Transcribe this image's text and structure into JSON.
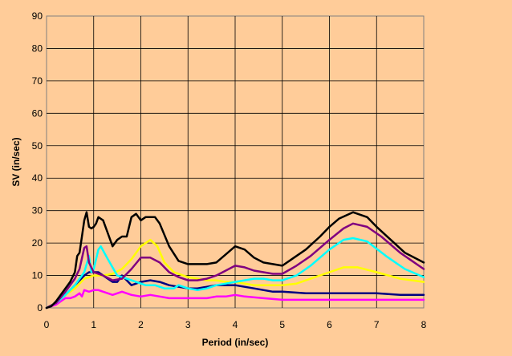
{
  "chart_data": {
    "type": "line",
    "title": "",
    "xlabel": "Period (in/sec)",
    "ylabel": "SV (in/sec)",
    "xlim": [
      0,
      8
    ],
    "ylim": [
      0,
      90
    ],
    "x_ticks": [
      "0",
      "1",
      "2",
      "3",
      "4",
      "5",
      "6",
      "7",
      "8"
    ],
    "y_ticks": [
      "0",
      "10",
      "20",
      "30",
      "40",
      "50",
      "60",
      "70",
      "80",
      "90"
    ],
    "grid": true,
    "legend": "none",
    "background": "#ffcc99",
    "plot_background": "#ffcc99",
    "series": [
      {
        "color": "#000000",
        "points": [
          [
            0,
            0
          ],
          [
            0.1,
            0.5
          ],
          [
            0.2,
            2
          ],
          [
            0.3,
            4
          ],
          [
            0.4,
            6
          ],
          [
            0.5,
            8
          ],
          [
            0.6,
            11
          ],
          [
            0.65,
            16
          ],
          [
            0.7,
            17
          ],
          [
            0.75,
            22
          ],
          [
            0.8,
            27
          ],
          [
            0.85,
            29.5
          ],
          [
            0.9,
            25
          ],
          [
            0.95,
            24.5
          ],
          [
            1.0,
            25
          ],
          [
            1.05,
            26
          ],
          [
            1.1,
            28
          ],
          [
            1.2,
            27
          ],
          [
            1.3,
            23
          ],
          [
            1.4,
            19
          ],
          [
            1.5,
            21
          ],
          [
            1.6,
            22
          ],
          [
            1.7,
            22
          ],
          [
            1.8,
            28
          ],
          [
            1.9,
            29
          ],
          [
            2.0,
            27
          ],
          [
            2.1,
            28
          ],
          [
            2.2,
            28
          ],
          [
            2.3,
            28
          ],
          [
            2.4,
            26
          ],
          [
            2.6,
            19
          ],
          [
            2.8,
            14.5
          ],
          [
            3.0,
            13.5
          ],
          [
            3.2,
            13.5
          ],
          [
            3.4,
            13.5
          ],
          [
            3.6,
            14
          ],
          [
            3.8,
            16.5
          ],
          [
            4.0,
            19
          ],
          [
            4.2,
            18
          ],
          [
            4.4,
            15.5
          ],
          [
            4.6,
            14
          ],
          [
            4.8,
            13.5
          ],
          [
            5.0,
            13
          ],
          [
            5.2,
            15
          ],
          [
            5.5,
            18
          ],
          [
            5.8,
            22
          ],
          [
            6.0,
            25
          ],
          [
            6.2,
            27.5
          ],
          [
            6.5,
            29.5
          ],
          [
            6.8,
            28
          ],
          [
            7.0,
            25
          ],
          [
            7.3,
            21
          ],
          [
            7.6,
            17
          ],
          [
            8.0,
            14
          ]
        ]
      },
      {
        "color": "#800080",
        "points": [
          [
            0,
            0
          ],
          [
            0.2,
            1.5
          ],
          [
            0.4,
            5
          ],
          [
            0.6,
            9
          ],
          [
            0.7,
            12
          ],
          [
            0.8,
            18.5
          ],
          [
            0.85,
            19
          ],
          [
            0.9,
            14
          ],
          [
            1.0,
            11
          ],
          [
            1.2,
            10
          ],
          [
            1.4,
            8.5
          ],
          [
            1.6,
            9
          ],
          [
            1.8,
            12
          ],
          [
            2.0,
            15.5
          ],
          [
            2.2,
            15.5
          ],
          [
            2.4,
            14
          ],
          [
            2.6,
            11
          ],
          [
            2.8,
            9.5
          ],
          [
            3.0,
            8.5
          ],
          [
            3.2,
            8.5
          ],
          [
            3.4,
            9
          ],
          [
            3.6,
            10
          ],
          [
            3.8,
            11.5
          ],
          [
            4.0,
            13
          ],
          [
            4.2,
            12.5
          ],
          [
            4.4,
            11.5
          ],
          [
            4.6,
            11
          ],
          [
            4.8,
            10.5
          ],
          [
            5.0,
            10.5
          ],
          [
            5.3,
            13
          ],
          [
            5.6,
            16
          ],
          [
            6.0,
            21
          ],
          [
            6.3,
            24.5
          ],
          [
            6.5,
            26
          ],
          [
            6.8,
            25
          ],
          [
            7.1,
            22
          ],
          [
            7.5,
            17
          ],
          [
            8.0,
            12
          ]
        ]
      },
      {
        "color": "#00ffff",
        "points": [
          [
            0,
            0
          ],
          [
            0.2,
            1.5
          ],
          [
            0.4,
            4
          ],
          [
            0.6,
            7
          ],
          [
            0.8,
            11
          ],
          [
            0.9,
            16
          ],
          [
            0.95,
            11
          ],
          [
            1.0,
            12
          ],
          [
            1.1,
            18
          ],
          [
            1.15,
            19
          ],
          [
            1.3,
            15
          ],
          [
            1.5,
            10
          ],
          [
            1.7,
            9
          ],
          [
            1.9,
            8
          ],
          [
            2.1,
            7
          ],
          [
            2.3,
            7
          ],
          [
            2.5,
            6
          ],
          [
            2.7,
            6
          ],
          [
            2.8,
            7
          ],
          [
            3.0,
            6
          ],
          [
            3.2,
            5.5
          ],
          [
            3.4,
            6
          ],
          [
            3.6,
            7
          ],
          [
            3.8,
            7.5
          ],
          [
            4.0,
            8
          ],
          [
            4.2,
            8.5
          ],
          [
            4.4,
            9
          ],
          [
            4.6,
            9
          ],
          [
            4.8,
            8.5
          ],
          [
            5.0,
            8.5
          ],
          [
            5.3,
            10
          ],
          [
            5.6,
            13
          ],
          [
            6.0,
            18
          ],
          [
            6.3,
            21
          ],
          [
            6.5,
            21.5
          ],
          [
            6.8,
            20.5
          ],
          [
            7.2,
            16
          ],
          [
            7.6,
            12
          ],
          [
            8.0,
            9.5
          ]
        ]
      },
      {
        "color": "#ffff00",
        "points": [
          [
            0,
            0
          ],
          [
            0.2,
            1.5
          ],
          [
            0.4,
            4
          ],
          [
            0.6,
            6
          ],
          [
            0.8,
            9
          ],
          [
            1.0,
            10
          ],
          [
            1.2,
            10
          ],
          [
            1.4,
            10.5
          ],
          [
            1.6,
            12
          ],
          [
            1.8,
            15
          ],
          [
            2.0,
            19
          ],
          [
            2.2,
            21
          ],
          [
            2.35,
            19
          ],
          [
            2.5,
            14
          ],
          [
            2.7,
            11
          ],
          [
            3.0,
            9.5
          ],
          [
            3.2,
            9
          ],
          [
            3.4,
            8.5
          ],
          [
            3.6,
            8.5
          ],
          [
            3.8,
            8
          ],
          [
            4.0,
            8
          ],
          [
            4.2,
            7.5
          ],
          [
            4.4,
            7
          ],
          [
            4.6,
            7
          ],
          [
            4.8,
            7
          ],
          [
            5.0,
            7
          ],
          [
            5.3,
            7.5
          ],
          [
            5.6,
            9
          ],
          [
            6.0,
            11
          ],
          [
            6.3,
            12.5
          ],
          [
            6.6,
            12.5
          ],
          [
            7.0,
            11
          ],
          [
            7.5,
            9
          ],
          [
            8.0,
            8
          ]
        ]
      },
      {
        "color": "#000080",
        "points": [
          [
            0,
            0
          ],
          [
            0.2,
            1.5
          ],
          [
            0.4,
            4
          ],
          [
            0.6,
            7
          ],
          [
            0.8,
            10
          ],
          [
            0.9,
            11
          ],
          [
            1.0,
            11
          ],
          [
            1.1,
            11
          ],
          [
            1.2,
            10
          ],
          [
            1.4,
            8
          ],
          [
            1.5,
            8
          ],
          [
            1.6,
            10
          ],
          [
            1.7,
            8.5
          ],
          [
            1.8,
            7
          ],
          [
            2.0,
            8
          ],
          [
            2.2,
            8.5
          ],
          [
            2.4,
            8
          ],
          [
            2.6,
            7
          ],
          [
            2.8,
            6.5
          ],
          [
            3.0,
            6
          ],
          [
            3.2,
            6
          ],
          [
            3.4,
            6.5
          ],
          [
            3.6,
            7
          ],
          [
            3.8,
            7
          ],
          [
            4.0,
            7
          ],
          [
            4.4,
            6
          ],
          [
            4.8,
            5
          ],
          [
            5.0,
            5
          ],
          [
            5.5,
            4.5
          ],
          [
            6.0,
            4.5
          ],
          [
            6.5,
            4.5
          ],
          [
            7.0,
            4.5
          ],
          [
            7.5,
            4
          ],
          [
            8.0,
            4
          ]
        ]
      },
      {
        "color": "#ff00ff",
        "points": [
          [
            0,
            0
          ],
          [
            0.2,
            1
          ],
          [
            0.3,
            2
          ],
          [
            0.4,
            3
          ],
          [
            0.5,
            3
          ],
          [
            0.6,
            3.5
          ],
          [
            0.7,
            4.5
          ],
          [
            0.75,
            3.5
          ],
          [
            0.8,
            5.5
          ],
          [
            0.9,
            5
          ],
          [
            1.0,
            5.5
          ],
          [
            1.1,
            5.5
          ],
          [
            1.2,
            5
          ],
          [
            1.4,
            4
          ],
          [
            1.6,
            5
          ],
          [
            1.8,
            4
          ],
          [
            2.0,
            3.5
          ],
          [
            2.2,
            4
          ],
          [
            2.4,
            3.5
          ],
          [
            2.6,
            3
          ],
          [
            2.8,
            3
          ],
          [
            3.0,
            3
          ],
          [
            3.2,
            3
          ],
          [
            3.4,
            3
          ],
          [
            3.6,
            3.5
          ],
          [
            3.8,
            3.5
          ],
          [
            4.0,
            4
          ],
          [
            4.2,
            3.5
          ],
          [
            4.6,
            3
          ],
          [
            5.0,
            2.5
          ],
          [
            5.5,
            2.5
          ],
          [
            6.0,
            2.5
          ],
          [
            6.5,
            2.5
          ],
          [
            7.0,
            2.5
          ],
          [
            7.5,
            2.5
          ],
          [
            8.0,
            2.5
          ]
        ]
      }
    ]
  }
}
